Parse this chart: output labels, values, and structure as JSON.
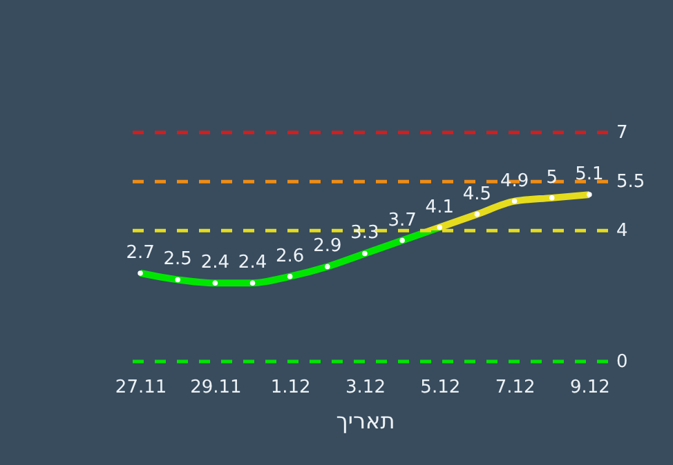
{
  "chart_data": {
    "type": "line",
    "xlabel": "תאריך",
    "categories": [
      "27.11",
      null,
      "29.11",
      null,
      "1.12",
      null,
      "3.12",
      null,
      "5.12",
      null,
      "7.12",
      null,
      "9.12"
    ],
    "series": [
      {
        "values": [
          2.7,
          2.5,
          2.4,
          2.4,
          2.6,
          2.9,
          3.3,
          3.7,
          4.1,
          4.5,
          4.9,
          5,
          5.1
        ]
      }
    ],
    "tick_labels": "x",
    "data_labels": true,
    "marker": "circle",
    "grid": false,
    "ref_lines": [
      {
        "axis": "y",
        "value": 0,
        "label": "0",
        "color": "#00e600",
        "line_style": "dashed"
      },
      {
        "axis": "y",
        "value": 4,
        "label": "4",
        "color": "#e6dc1e",
        "line_style": "dashed"
      },
      {
        "axis": "y",
        "value": 5.5,
        "label": "5.5",
        "color": "#f08c14",
        "line_style": "dashed"
      },
      {
        "axis": "y",
        "value": 7,
        "label": "7",
        "color": "#d21e1e",
        "line_style": "dashed"
      }
    ]
  }
}
